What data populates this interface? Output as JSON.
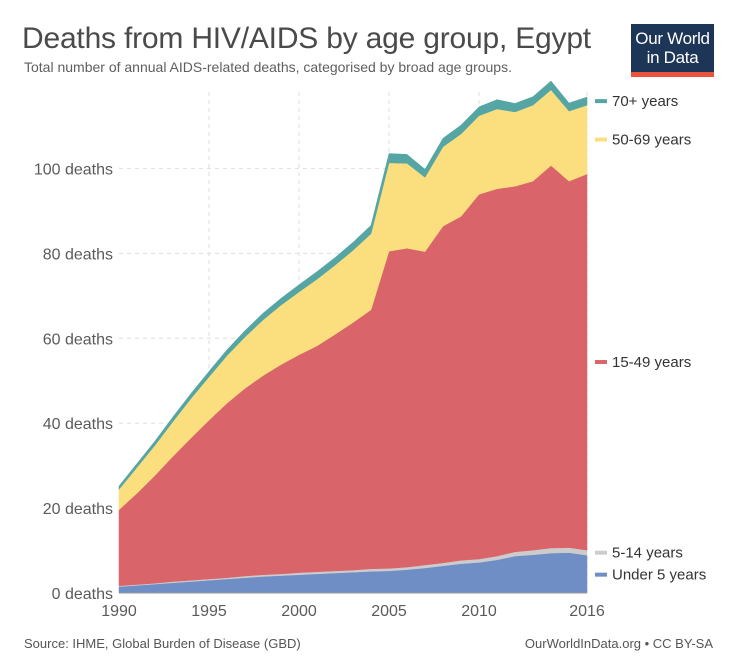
{
  "header": {
    "title": "Deaths from HIV/AIDS by age group, Egypt",
    "subtitle": "Total number of annual AIDS-related deaths, categorised by broad age groups.",
    "logo_line1": "Our World",
    "logo_line2": "in Data"
  },
  "footer": {
    "source": "Source: IHME, Global Burden of Disease (GBD)",
    "credit": "OurWorldInData.org • CC BY-SA"
  },
  "chart_data": {
    "type": "area",
    "stacked": true,
    "title": "Deaths from HIV/AIDS by age group, Egypt",
    "subtitle": "Total number of annual AIDS-related deaths, categorised by broad age groups.",
    "x": [
      1990,
      1991,
      1992,
      1993,
      1994,
      1995,
      1996,
      1997,
      1998,
      1999,
      2000,
      2001,
      2002,
      2003,
      2004,
      2005,
      2006,
      2007,
      2008,
      2009,
      2010,
      2011,
      2012,
      2013,
      2014,
      2015,
      2016
    ],
    "x_ticks": [
      1990,
      1995,
      2000,
      2005,
      2010,
      2016
    ],
    "x_tick_labels": [
      "1990",
      "1995",
      "2000",
      "2005",
      "2010",
      "2016"
    ],
    "y_ticks": [
      0,
      20,
      40,
      60,
      80,
      100
    ],
    "y_tick_labels": [
      "0 deaths",
      "20 deaths",
      "40 deaths",
      "60 deaths",
      "80 deaths",
      "100 deaths"
    ],
    "ylim": [
      0,
      118
    ],
    "xlim": [
      1990,
      2016
    ],
    "grid": "dashed",
    "legend_position": "right",
    "series": [
      {
        "name": "Under 5 years",
        "color": "#6e8ec5",
        "values": [
          1.5,
          1.8,
          2.1,
          2.4,
          2.7,
          3.0,
          3.3,
          3.6,
          3.9,
          4.1,
          4.3,
          4.5,
          4.7,
          4.9,
          5.1,
          5.2,
          5.5,
          5.9,
          6.4,
          6.9,
          7.2,
          7.8,
          8.7,
          9.0,
          9.4,
          9.5,
          8.9
        ]
      },
      {
        "name": "5-14 years",
        "color": "#cccccc",
        "values": [
          0.2,
          0.2,
          0.2,
          0.3,
          0.3,
          0.3,
          0.3,
          0.4,
          0.4,
          0.4,
          0.5,
          0.5,
          0.5,
          0.5,
          0.6,
          0.6,
          0.6,
          0.7,
          0.7,
          0.8,
          0.8,
          0.9,
          1.0,
          1.1,
          1.2,
          1.2,
          1.2
        ]
      },
      {
        "name": "15-49 years",
        "color": "#d9646a",
        "values": [
          17.9,
          21.5,
          25.4,
          29.5,
          33.5,
          37.4,
          41.1,
          44.2,
          46.9,
          49.3,
          51.3,
          53.2,
          55.7,
          58.3,
          61.0,
          74.7,
          75.1,
          73.8,
          79.3,
          81.0,
          85.9,
          86.5,
          86.1,
          86.9,
          90.1,
          86.3,
          88.6
        ]
      },
      {
        "name": "50-69 years",
        "color": "#fbdf7e",
        "values": [
          4.8,
          6.1,
          7.1,
          8.2,
          9.3,
          10.2,
          11.2,
          12.1,
          13.1,
          14.0,
          14.8,
          15.7,
          16.3,
          17.0,
          17.9,
          20.8,
          20.0,
          17.5,
          18.7,
          19.4,
          18.5,
          18.8,
          17.5,
          17.9,
          17.8,
          16.5,
          16.2
        ]
      },
      {
        "name": "70+ years",
        "color": "#56a5a5",
        "values": [
          0.8,
          0.9,
          1.0,
          1.1,
          1.2,
          1.3,
          1.4,
          1.5,
          1.6,
          1.6,
          1.7,
          1.8,
          1.8,
          1.9,
          2.0,
          2.2,
          2.1,
          1.9,
          2.0,
          2.1,
          2.1,
          2.2,
          2.0,
          2.0,
          2.1,
          1.9,
          1.9
        ]
      }
    ]
  }
}
